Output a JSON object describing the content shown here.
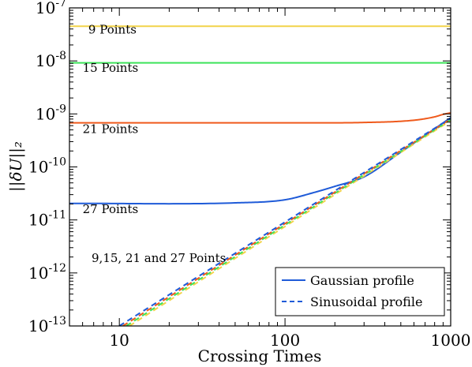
{
  "chart_data": {
    "type": "line",
    "xlabel": "Crossing Times",
    "ylabel": "||δU||₂",
    "x_scale": "log",
    "y_scale": "log",
    "xlim": [
      5,
      1000
    ],
    "ylim": [
      1e-13,
      1e-07
    ],
    "x_ticks": [
      {
        "value": 10,
        "label": "10"
      },
      {
        "value": 100,
        "label": "100"
      },
      {
        "value": 1000,
        "label": "1000"
      }
    ],
    "y_ticks": [
      {
        "value": 1e-13,
        "mantissa": "10",
        "exponent": "-13"
      },
      {
        "value": 1e-12,
        "mantissa": "10",
        "exponent": "-12"
      },
      {
        "value": 1e-11,
        "mantissa": "10",
        "exponent": "-11"
      },
      {
        "value": 1e-10,
        "mantissa": "10",
        "exponent": "-10"
      },
      {
        "value": 1e-09,
        "mantissa": "10",
        "exponent": "-9"
      },
      {
        "value": 1e-08,
        "mantissa": "10",
        "exponent": "-8"
      },
      {
        "value": 1e-07,
        "mantissa": "10",
        "exponent": "-7"
      }
    ],
    "grid": false,
    "legend_position": "bottom-right",
    "legend": [
      {
        "label": "Gaussian profile",
        "style": "solid",
        "color": "#1f5bd8"
      },
      {
        "label": "Sinusoidal profile",
        "style": "dashed",
        "color": "#1f5bd8"
      }
    ],
    "series": [
      {
        "name": "9 Points",
        "profile": "Gaussian",
        "style": "solid",
        "color": "#f2d34a",
        "x": [
          5,
          1000
        ],
        "y": [
          4.5e-08,
          4.5e-08
        ]
      },
      {
        "name": "15 Points",
        "profile": "Gaussian",
        "style": "solid",
        "color": "#3ee35a",
        "x": [
          5,
          1000
        ],
        "y": [
          9.2e-09,
          9.2e-09
        ]
      },
      {
        "name": "21 Points",
        "profile": "Gaussian",
        "style": "solid",
        "color": "#ef5a1c",
        "x": [
          5,
          100,
          300,
          600,
          800,
          900,
          1000
        ],
        "y": [
          6.8e-10,
          6.8e-10,
          6.9e-10,
          7.6e-10,
          8.8e-10,
          9.8e-10,
          1.05e-09
        ]
      },
      {
        "name": "27 Points",
        "profile": "Gaussian",
        "style": "solid",
        "color": "#1f5bd8",
        "x": [
          5,
          50,
          100,
          150,
          200,
          300,
          500,
          1000
        ],
        "y": [
          2.05e-11,
          2.1e-11,
          2.4e-11,
          3.3e-11,
          4.3e-11,
          6.5e-11,
          1.9e-10,
          8.5e-10
        ]
      },
      {
        "name": "9 Points",
        "profile": "Sinusoidal",
        "style": "dashed",
        "color": "#f2d34a",
        "x": [
          11.5,
          1000
        ],
        "y": [
          1e-13,
          7.5e-10
        ]
      },
      {
        "name": "15 Points",
        "profile": "Sinusoidal",
        "style": "dashed",
        "color": "#3ee35a",
        "x": [
          11,
          1000
        ],
        "y": [
          1e-13,
          7.8e-10
        ]
      },
      {
        "name": "21 Points",
        "profile": "Sinusoidal",
        "style": "dashed",
        "color": "#ef5a1c",
        "x": [
          10.5,
          1000
        ],
        "y": [
          1e-13,
          8e-10
        ]
      },
      {
        "name": "27 Points",
        "profile": "Sinusoidal",
        "style": "dashed",
        "color": "#1f5bd8",
        "x": [
          10,
          1000
        ],
        "y": [
          1e-13,
          8.3e-10
        ]
      }
    ],
    "annotations": [
      {
        "text": "9 Points",
        "x": 6.5,
        "y": 3.3e-08
      },
      {
        "text": "15 Points",
        "x": 6.0,
        "y": 6.2e-09
      },
      {
        "text": "21 Points",
        "x": 6.0,
        "y": 4.4e-10
      },
      {
        "text": "27 Points",
        "x": 6.0,
        "y": 1.35e-11
      },
      {
        "text": "9,15, 21 and 27 Points",
        "x": 6.8,
        "y": 1.6e-12
      }
    ]
  }
}
